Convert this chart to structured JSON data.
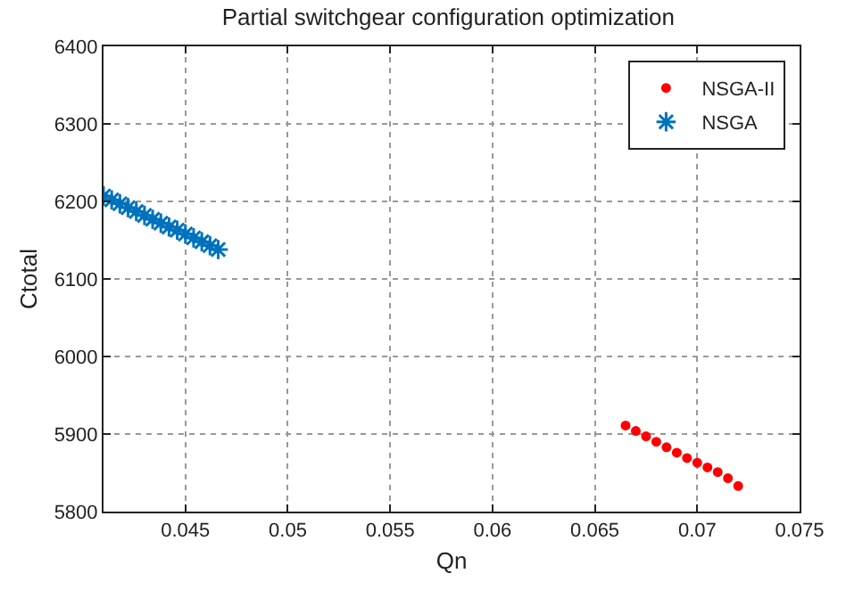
{
  "chart_data": {
    "type": "scatter",
    "title": "Partial switchgear configuration optimization",
    "xlabel": "Qn",
    "ylabel": "Ctotal",
    "series": [
      {
        "name": "NSGA-II",
        "color": "#ff0000",
        "marker": "circle",
        "x": [
          0.0665,
          0.067,
          0.0675,
          0.068,
          0.0685,
          0.069,
          0.0695,
          0.07,
          0.0705,
          0.071,
          0.0715,
          0.072
        ],
        "values": [
          5911,
          5904,
          5897,
          5890,
          5883,
          5876,
          5869,
          5863,
          5857,
          5851,
          5843,
          5833
        ]
      },
      {
        "name": "NSGA",
        "color": "#0072bd",
        "marker": "cross",
        "x": [
          0.041,
          0.0414,
          0.0418,
          0.0422,
          0.0426,
          0.043,
          0.0434,
          0.0438,
          0.0442,
          0.0446,
          0.045,
          0.0454,
          0.0458,
          0.0462,
          0.0466
        ],
        "values": [
          6207,
          6202,
          6197,
          6192,
          6187,
          6182,
          6177,
          6172,
          6167,
          6163,
          6158,
          6153,
          6148,
          6143,
          6138
        ]
      }
    ],
    "xlim": [
      0.041,
      0.075
    ],
    "xticks": [
      0.045,
      0.05,
      0.055,
      0.06,
      0.065,
      0.07,
      0.075
    ],
    "ylim": [
      5800,
      6400
    ],
    "yticks": [
      5800,
      5900,
      6000,
      6100,
      6200,
      6300,
      6400
    ],
    "grid": true,
    "legend": "top right"
  }
}
